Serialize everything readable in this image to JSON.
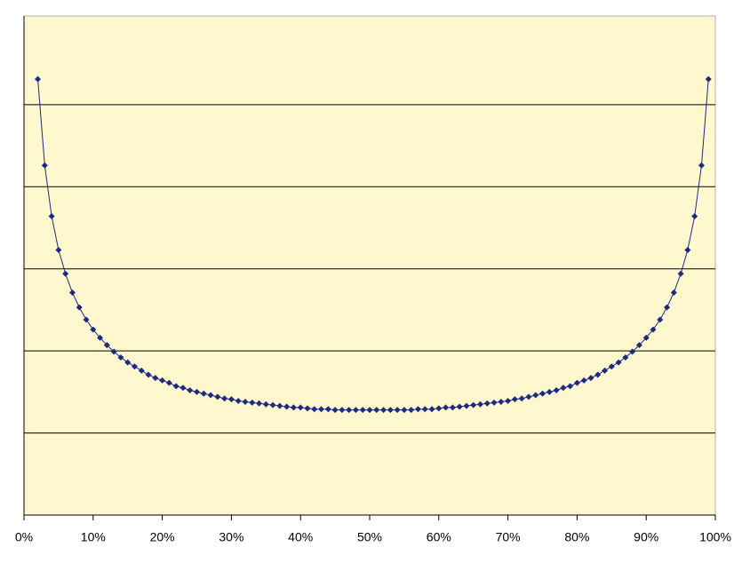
{
  "chart_data": {
    "type": "line",
    "x": [
      2,
      3,
      4,
      5,
      6,
      7,
      8,
      9,
      10,
      11,
      12,
      13,
      14,
      15,
      16,
      17,
      18,
      19,
      20,
      21,
      22,
      23,
      24,
      25,
      26,
      27,
      28,
      29,
      30,
      31,
      32,
      33,
      34,
      35,
      36,
      37,
      38,
      39,
      40,
      41,
      42,
      43,
      44,
      45,
      46,
      47,
      48,
      49,
      50,
      51,
      52,
      53,
      54,
      55,
      56,
      57,
      58,
      59,
      60,
      61,
      62,
      63,
      64,
      65,
      66,
      67,
      68,
      69,
      70,
      71,
      72,
      73,
      74,
      75,
      76,
      77,
      78,
      79,
      80,
      81,
      82,
      83,
      84,
      85,
      86,
      87,
      88,
      89,
      90,
      91,
      92,
      93,
      94,
      95,
      96,
      97,
      98,
      99
    ],
    "series": [
      {
        "color": "#1c2a80",
        "values": [
          5.31,
          4.26,
          3.64,
          3.23,
          2.94,
          2.71,
          2.53,
          2.38,
          2.26,
          2.16,
          2.07,
          1.99,
          1.92,
          1.86,
          1.81,
          1.76,
          1.71,
          1.67,
          1.64,
          1.61,
          1.57,
          1.55,
          1.52,
          1.5,
          1.48,
          1.46,
          1.44,
          1.42,
          1.41,
          1.39,
          1.38,
          1.37,
          1.36,
          1.35,
          1.34,
          1.33,
          1.32,
          1.31,
          1.31,
          1.3,
          1.29,
          1.29,
          1.29,
          1.28,
          1.28,
          1.28,
          1.28,
          1.28,
          1.28,
          1.28,
          1.28,
          1.28,
          1.28,
          1.28,
          1.28,
          1.29,
          1.29,
          1.29,
          1.3,
          1.31,
          1.31,
          1.32,
          1.33,
          1.34,
          1.35,
          1.36,
          1.37,
          1.38,
          1.39,
          1.41,
          1.42,
          1.44,
          1.46,
          1.48,
          1.5,
          1.52,
          1.55,
          1.57,
          1.61,
          1.64,
          1.67,
          1.71,
          1.76,
          1.81,
          1.86,
          1.92,
          1.99,
          2.07,
          2.16,
          2.26,
          2.38,
          2.53,
          2.71,
          2.94,
          3.23,
          3.64,
          4.26,
          5.31
        ]
      }
    ],
    "xlim": [
      0,
      100
    ],
    "xticks": [
      {
        "value": 0,
        "label": "0%"
      },
      {
        "value": 10,
        "label": "10%"
      },
      {
        "value": 20,
        "label": "20%"
      },
      {
        "value": 30,
        "label": "30%"
      },
      {
        "value": 40,
        "label": "40%"
      },
      {
        "value": 50,
        "label": "50%"
      },
      {
        "value": 60,
        "label": "60%"
      },
      {
        "value": 70,
        "label": "70%"
      },
      {
        "value": 80,
        "label": "80%"
      },
      {
        "value": 90,
        "label": "90%"
      },
      {
        "value": 100,
        "label": "100%"
      }
    ],
    "ylim": [
      0,
      6.08
    ],
    "yticks": [
      0,
      1,
      2,
      3,
      4,
      5
    ],
    "grid": true,
    "plot_background": "#fff8cf"
  }
}
